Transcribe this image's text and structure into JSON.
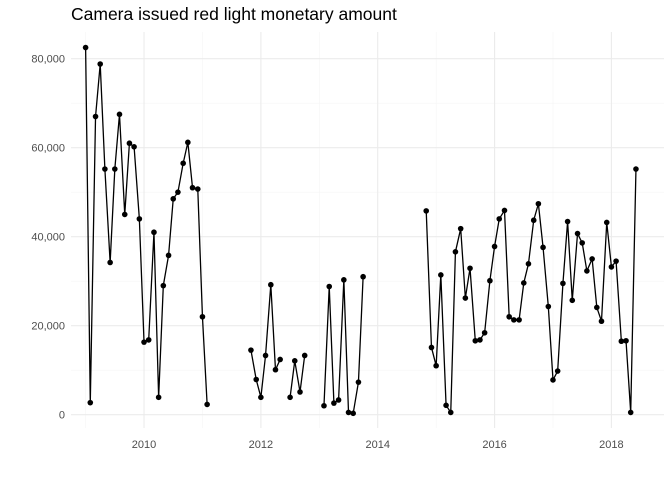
{
  "chart_data": {
    "type": "line",
    "title": "Camera issued red light monetary amount",
    "xlabel": "",
    "ylabel": "",
    "xlim": [
      2008.75,
      2018.9
    ],
    "ylim": [
      -3000,
      86000
    ],
    "x_ticks": [
      2010,
      2012,
      2014,
      2016,
      2018
    ],
    "x_tick_labels": [
      "2010",
      "2012",
      "2014",
      "2016",
      "2018"
    ],
    "y_ticks": [
      0,
      20000,
      40000,
      60000,
      80000
    ],
    "y_tick_labels": [
      "0",
      "20,000",
      "40,000",
      "60,000",
      "80,000"
    ],
    "grid": true,
    "legend": "none",
    "colors": {
      "line": "#000000",
      "point": "#000000",
      "grid_major": "#ebebeb",
      "grid_minor": "#f5f5f5",
      "text": "#4d4d4d"
    },
    "series": [
      {
        "segments": [
          [
            {
              "x": 2009.0,
              "y": 82500
            },
            {
              "x": 2009.08,
              "y": 2700
            },
            {
              "x": 2009.17,
              "y": 67000
            },
            {
              "x": 2009.25,
              "y": 78800
            },
            {
              "x": 2009.33,
              "y": 55200
            },
            {
              "x": 2009.42,
              "y": 34200
            },
            {
              "x": 2009.5,
              "y": 55200
            },
            {
              "x": 2009.58,
              "y": 67500
            },
            {
              "x": 2009.67,
              "y": 45000
            },
            {
              "x": 2009.75,
              "y": 61000
            },
            {
              "x": 2009.83,
              "y": 60200
            },
            {
              "x": 2009.92,
              "y": 44000
            },
            {
              "x": 2010.0,
              "y": 16300
            },
            {
              "x": 2010.08,
              "y": 16800
            },
            {
              "x": 2010.17,
              "y": 41000
            },
            {
              "x": 2010.25,
              "y": 3900
            },
            {
              "x": 2010.33,
              "y": 29000
            },
            {
              "x": 2010.42,
              "y": 35800
            },
            {
              "x": 2010.5,
              "y": 48500
            },
            {
              "x": 2010.58,
              "y": 50000
            },
            {
              "x": 2010.67,
              "y": 56500
            },
            {
              "x": 2010.75,
              "y": 61200
            },
            {
              "x": 2010.83,
              "y": 51000
            },
            {
              "x": 2010.92,
              "y": 50700
            },
            {
              "x": 2011.0,
              "y": 22000
            },
            {
              "x": 2011.08,
              "y": 2300
            }
          ],
          [
            {
              "x": 2011.83,
              "y": 14500
            },
            {
              "x": 2011.92,
              "y": 7900
            },
            {
              "x": 2012.0,
              "y": 3900
            },
            {
              "x": 2012.08,
              "y": 13300
            },
            {
              "x": 2012.17,
              "y": 29200
            },
            {
              "x": 2012.25,
              "y": 10100
            },
            {
              "x": 2012.33,
              "y": 12400
            }
          ],
          [
            {
              "x": 2012.5,
              "y": 3900
            },
            {
              "x": 2012.58,
              "y": 12100
            },
            {
              "x": 2012.67,
              "y": 5100
            },
            {
              "x": 2012.75,
              "y": 13300
            }
          ],
          [
            {
              "x": 2013.08,
              "y": 2000
            },
            {
              "x": 2013.17,
              "y": 28800
            },
            {
              "x": 2013.25,
              "y": 2600
            },
            {
              "x": 2013.33,
              "y": 3300
            },
            {
              "x": 2013.42,
              "y": 30300
            },
            {
              "x": 2013.5,
              "y": 500
            },
            {
              "x": 2013.58,
              "y": 300
            },
            {
              "x": 2013.67,
              "y": 7300
            },
            {
              "x": 2013.75,
              "y": 31000
            }
          ],
          [
            {
              "x": 2014.83,
              "y": 45800
            },
            {
              "x": 2014.92,
              "y": 15100
            },
            {
              "x": 2015.0,
              "y": 11000
            },
            {
              "x": 2015.08,
              "y": 31400
            },
            {
              "x": 2015.17,
              "y": 2100
            },
            {
              "x": 2015.25,
              "y": 500
            },
            {
              "x": 2015.33,
              "y": 36600
            },
            {
              "x": 2015.42,
              "y": 41800
            },
            {
              "x": 2015.5,
              "y": 26200
            },
            {
              "x": 2015.58,
              "y": 32900
            },
            {
              "x": 2015.67,
              "y": 16600
            },
            {
              "x": 2015.75,
              "y": 16800
            },
            {
              "x": 2015.83,
              "y": 18400
            },
            {
              "x": 2015.92,
              "y": 30100
            },
            {
              "x": 2016.0,
              "y": 37800
            },
            {
              "x": 2016.08,
              "y": 44000
            },
            {
              "x": 2016.17,
              "y": 45900
            },
            {
              "x": 2016.25,
              "y": 22000
            },
            {
              "x": 2016.33,
              "y": 21300
            },
            {
              "x": 2016.42,
              "y": 21300
            },
            {
              "x": 2016.5,
              "y": 29600
            },
            {
              "x": 2016.58,
              "y": 33900
            },
            {
              "x": 2016.67,
              "y": 43700
            },
            {
              "x": 2016.75,
              "y": 47400
            },
            {
              "x": 2016.83,
              "y": 37600
            },
            {
              "x": 2016.92,
              "y": 24300
            },
            {
              "x": 2017.0,
              "y": 7800
            },
            {
              "x": 2017.08,
              "y": 9800
            },
            {
              "x": 2017.17,
              "y": 29500
            },
            {
              "x": 2017.25,
              "y": 43400
            },
            {
              "x": 2017.33,
              "y": 25700
            },
            {
              "x": 2017.42,
              "y": 40700
            },
            {
              "x": 2017.5,
              "y": 38600
            },
            {
              "x": 2017.58,
              "y": 32300
            },
            {
              "x": 2017.67,
              "y": 35000
            },
            {
              "x": 2017.75,
              "y": 24100
            },
            {
              "x": 2017.83,
              "y": 21000
            },
            {
              "x": 2017.92,
              "y": 43200
            },
            {
              "x": 2018.0,
              "y": 33200
            },
            {
              "x": 2018.08,
              "y": 34500
            },
            {
              "x": 2018.17,
              "y": 16500
            },
            {
              "x": 2018.25,
              "y": 16600
            },
            {
              "x": 2018.33,
              "y": 500
            },
            {
              "x": 2018.42,
              "y": 55200
            }
          ]
        ]
      }
    ]
  }
}
